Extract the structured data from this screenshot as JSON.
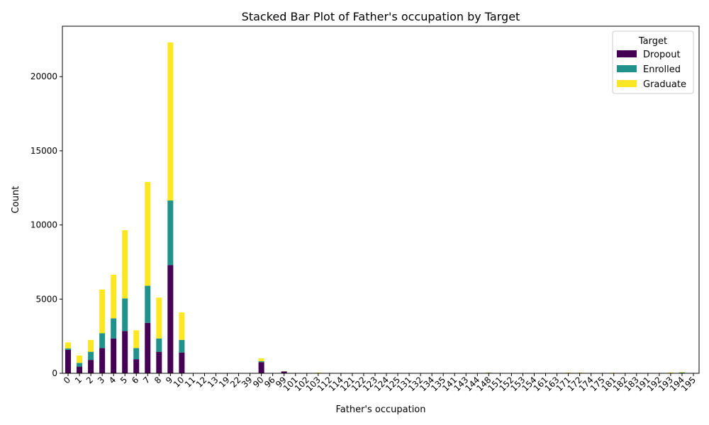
{
  "chart_data": {
    "type": "bar",
    "stacked": true,
    "title": "Stacked Bar Plot of Father's occupation by Target",
    "xlabel": "Father's occupation",
    "ylabel": "Count",
    "ylim": [
      0,
      23400
    ],
    "yticks": [
      0,
      5000,
      10000,
      15000,
      20000
    ],
    "legend": {
      "title": "Target",
      "position": "top-right"
    },
    "categories": [
      "0",
      "1",
      "2",
      "3",
      "4",
      "5",
      "6",
      "7",
      "8",
      "9",
      "10",
      "11",
      "12",
      "13",
      "19",
      "22",
      "39",
      "90",
      "96",
      "99",
      "101",
      "102",
      "103",
      "112",
      "114",
      "121",
      "122",
      "123",
      "124",
      "125",
      "131",
      "132",
      "134",
      "135",
      "141",
      "143",
      "144",
      "148",
      "151",
      "152",
      "153",
      "154",
      "161",
      "163",
      "171",
      "172",
      "174",
      "175",
      "181",
      "182",
      "183",
      "191",
      "192",
      "193",
      "194",
      "195"
    ],
    "series": [
      {
        "name": "Dropout",
        "color": "#440154",
        "values": [
          1580,
          450,
          900,
          1700,
          2350,
          2850,
          950,
          3400,
          1450,
          7300,
          1400,
          5,
          3,
          2,
          4,
          3,
          2,
          750,
          5,
          120,
          6,
          3,
          10,
          5,
          2,
          2,
          2,
          2,
          2,
          2,
          2,
          2,
          2,
          2,
          2,
          2,
          2,
          10,
          2,
          2,
          2,
          2,
          2,
          2,
          5,
          5,
          2,
          2,
          5,
          2,
          2,
          2,
          2,
          10,
          15,
          2
        ]
      },
      {
        "name": "Enrolled",
        "color": "#21918c",
        "values": [
          100,
          250,
          550,
          1000,
          1350,
          2200,
          750,
          2500,
          900,
          4350,
          850,
          3,
          2,
          1,
          2,
          2,
          1,
          60,
          2,
          10,
          3,
          2,
          10,
          5,
          2,
          2,
          2,
          2,
          2,
          2,
          2,
          2,
          2,
          2,
          2,
          2,
          2,
          30,
          2,
          2,
          2,
          2,
          2,
          2,
          25,
          25,
          2,
          2,
          10,
          2,
          2,
          2,
          2,
          15,
          35,
          2
        ]
      },
      {
        "name": "Graduate",
        "color": "#fde725",
        "values": [
          400,
          500,
          800,
          2950,
          2950,
          4600,
          1200,
          7000,
          2750,
          10650,
          1850,
          5,
          3,
          2,
          4,
          3,
          2,
          200,
          5,
          10,
          5,
          3,
          20,
          5,
          2,
          2,
          2,
          2,
          2,
          2,
          2,
          2,
          2,
          2,
          2,
          2,
          2,
          15,
          2,
          2,
          2,
          2,
          2,
          2,
          15,
          15,
          2,
          2,
          20,
          2,
          2,
          2,
          2,
          25,
          25,
          2
        ]
      }
    ]
  }
}
